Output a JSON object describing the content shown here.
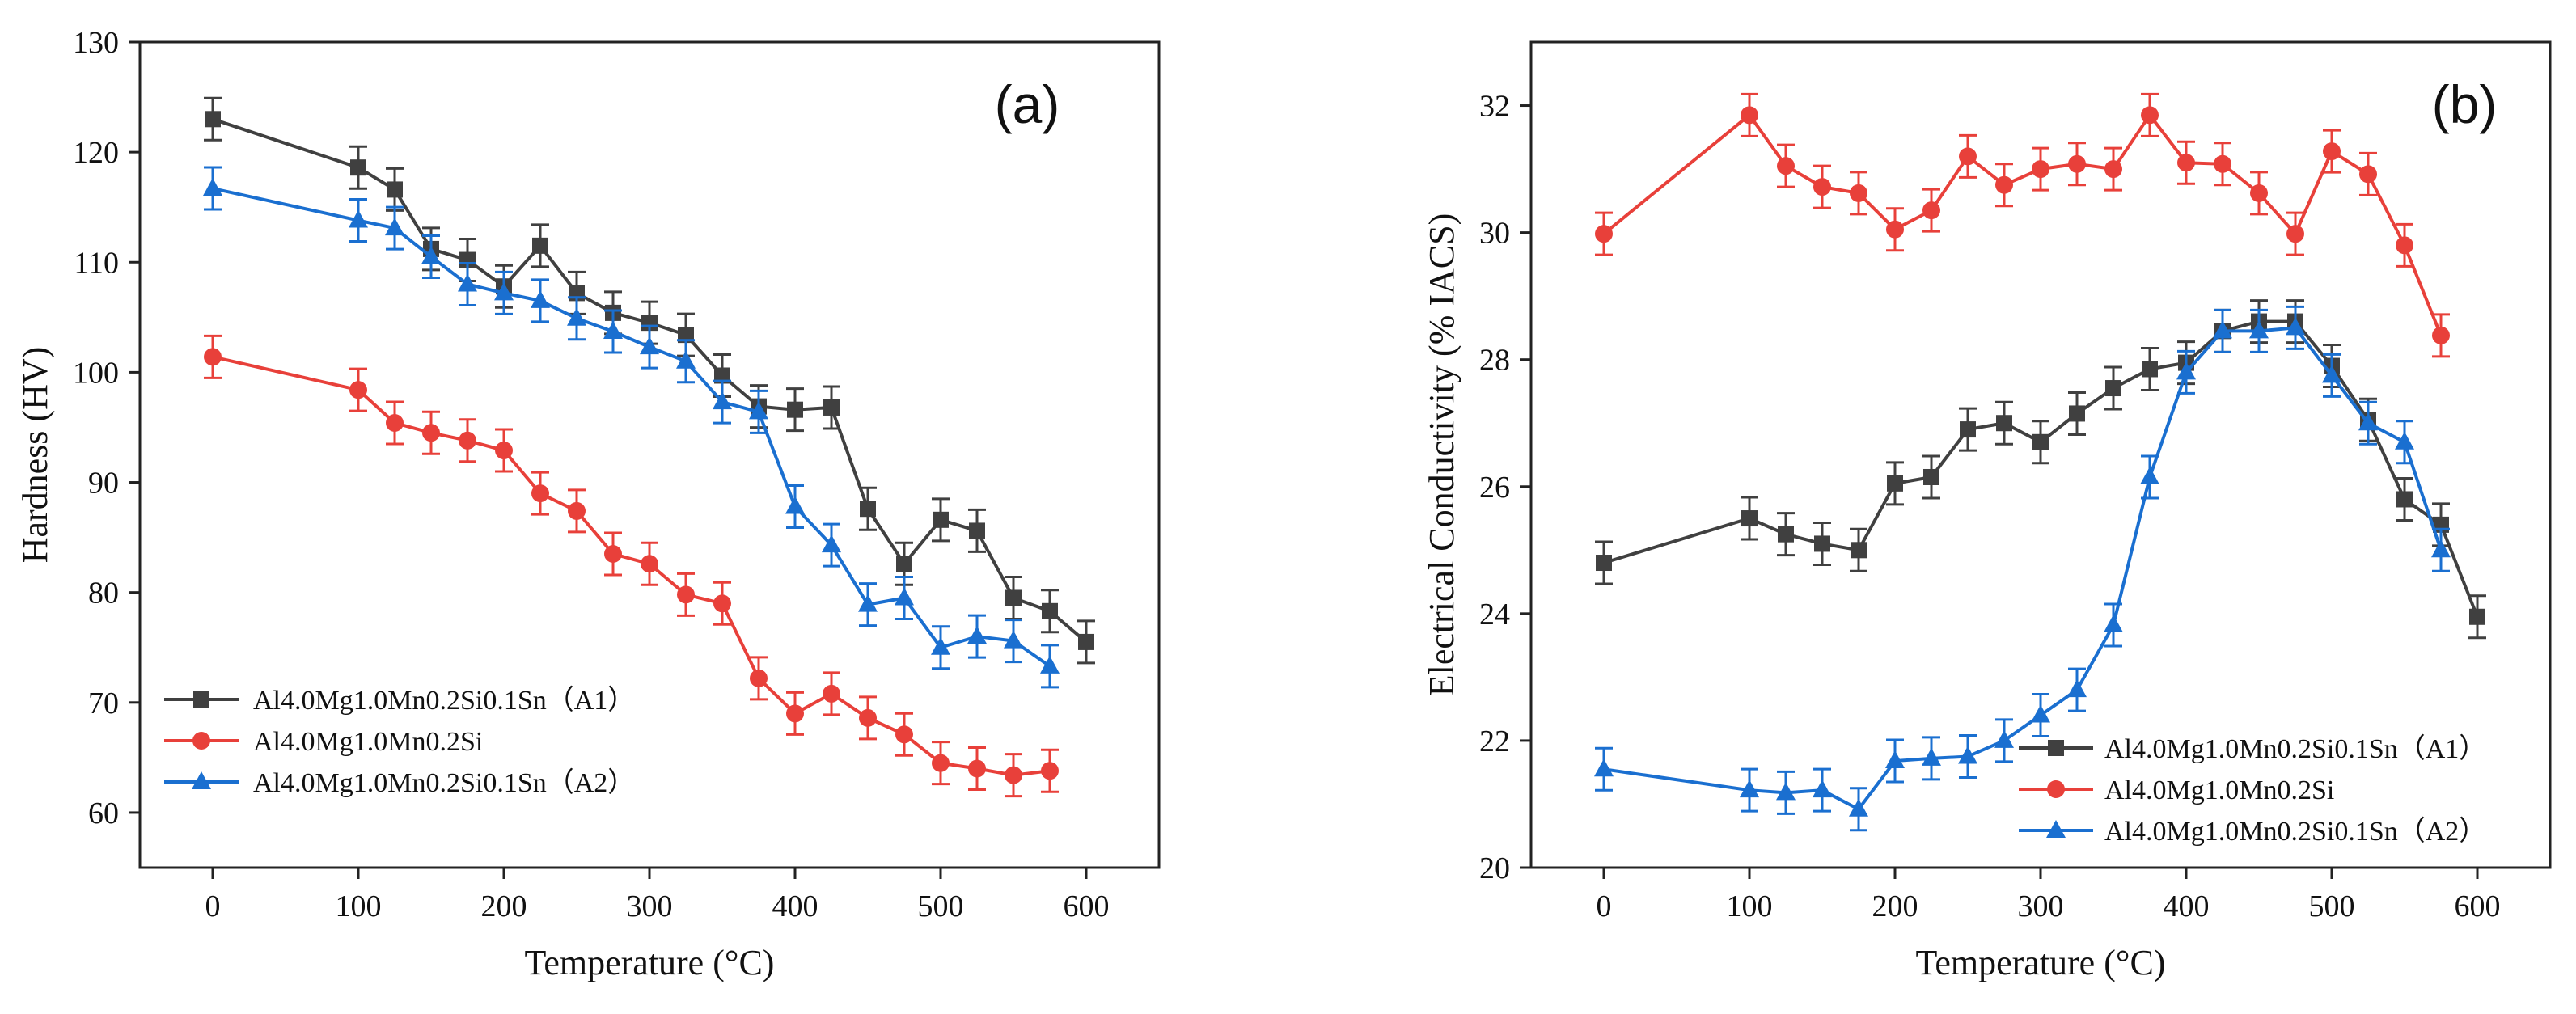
{
  "chart_data": [
    {
      "type": "line",
      "panel_label": "(a)",
      "xlabel": "Temperature (°C)",
      "ylabel": "Hardness (HV)",
      "xlim": [
        -50,
        650
      ],
      "ylim": [
        55,
        130
      ],
      "xticks": [
        0,
        100,
        200,
        300,
        400,
        500,
        600
      ],
      "yticks": [
        60,
        70,
        80,
        90,
        100,
        110,
        120,
        130
      ],
      "legend_position": "bottom-left",
      "series": [
        {
          "name": "Al4.0Mg1.0Mn0.2Si0.1Sn（A1）",
          "color": "#404040",
          "marker": "square",
          "x": [
            0,
            100,
            125,
            150,
            175,
            200,
            225,
            250,
            275,
            300,
            325,
            350,
            375,
            400,
            425,
            450,
            475,
            500,
            525,
            550,
            575,
            600
          ],
          "y": [
            123.0,
            118.6,
            116.6,
            111.2,
            110.2,
            107.8,
            111.5,
            107.2,
            105.4,
            104.5,
            103.4,
            99.7,
            96.9,
            96.6,
            96.8,
            87.6,
            82.6,
            86.6,
            85.6,
            79.5,
            78.3,
            75.5
          ]
        },
        {
          "name": "Al4.0Mg1.0Mn0.2Si",
          "color": "#e8403a",
          "marker": "circle",
          "x": [
            0,
            100,
            125,
            150,
            175,
            200,
            225,
            250,
            275,
            300,
            325,
            350,
            375,
            400,
            425,
            450,
            475,
            500,
            525,
            550,
            575
          ],
          "y": [
            101.4,
            98.4,
            95.4,
            94.5,
            93.8,
            92.9,
            89.0,
            87.4,
            83.5,
            82.6,
            79.8,
            79.0,
            72.2,
            69.0,
            70.8,
            68.6,
            67.1,
            64.5,
            64.0,
            63.4,
            63.8
          ]
        },
        {
          "name": "Al4.0Mg1.0Mn0.2Si0.1Sn（A2）",
          "color": "#1a6fd0",
          "marker": "triangle",
          "x": [
            0,
            100,
            125,
            150,
            175,
            200,
            225,
            250,
            275,
            300,
            325,
            350,
            375,
            400,
            425,
            450,
            475,
            500,
            525,
            550,
            575
          ],
          "y": [
            116.7,
            113.8,
            113.1,
            110.5,
            108.0,
            107.2,
            106.5,
            104.9,
            103.7,
            102.3,
            101.0,
            97.3,
            96.4,
            87.8,
            84.3,
            78.9,
            79.5,
            75.0,
            76.0,
            75.6,
            73.3
          ]
        }
      ]
    },
    {
      "type": "line",
      "panel_label": "(b)",
      "xlabel": "Temperature (°C)",
      "ylabel": "Electrical Conductivity (% IACS)",
      "xlim": [
        -50,
        650
      ],
      "ylim": [
        20,
        33
      ],
      "xticks": [
        0,
        100,
        200,
        300,
        400,
        500,
        600
      ],
      "yticks": [
        20,
        22,
        24,
        26,
        28,
        30,
        32
      ],
      "legend_position": "bottom-right",
      "series": [
        {
          "name": "Al4.0Mg1.0Mn0.2Si0.1Sn（A1）",
          "color": "#404040",
          "marker": "square",
          "x": [
            0,
            100,
            125,
            150,
            175,
            200,
            225,
            250,
            275,
            300,
            325,
            350,
            375,
            400,
            425,
            450,
            475,
            500,
            525,
            550,
            575,
            600
          ],
          "y": [
            24.8,
            25.5,
            25.25,
            25.1,
            25.0,
            26.05,
            26.15,
            26.9,
            27.0,
            26.7,
            27.15,
            27.55,
            27.85,
            27.95,
            28.45,
            28.6,
            28.6,
            27.9,
            27.05,
            25.8,
            25.4,
            23.95
          ]
        },
        {
          "name": "Al4.0Mg1.0Mn0.2Si",
          "color": "#e8403a",
          "marker": "circle",
          "x": [
            0,
            100,
            125,
            150,
            175,
            200,
            225,
            250,
            275,
            300,
            325,
            350,
            375,
            400,
            425,
            450,
            475,
            500,
            525,
            550,
            575
          ],
          "y": [
            29.98,
            31.85,
            31.05,
            30.72,
            30.62,
            30.05,
            30.35,
            31.2,
            30.75,
            31.0,
            31.08,
            31.0,
            31.85,
            31.1,
            31.08,
            30.62,
            29.98,
            31.28,
            30.92,
            29.8,
            28.38
          ]
        },
        {
          "name": "Al4.0Mg1.0Mn0.2Si0.1Sn（A2）",
          "color": "#1a6fd0",
          "marker": "triangle",
          "x": [
            0,
            100,
            125,
            150,
            175,
            200,
            225,
            250,
            275,
            300,
            325,
            350,
            375,
            400,
            425,
            450,
            475,
            500,
            525,
            550,
            575
          ],
          "y": [
            21.55,
            21.22,
            21.18,
            21.22,
            20.92,
            21.68,
            21.72,
            21.75,
            22.0,
            22.4,
            22.8,
            23.82,
            26.15,
            27.8,
            28.45,
            28.45,
            28.5,
            27.75,
            27.0,
            26.7,
            25.0
          ]
        }
      ]
    }
  ]
}
